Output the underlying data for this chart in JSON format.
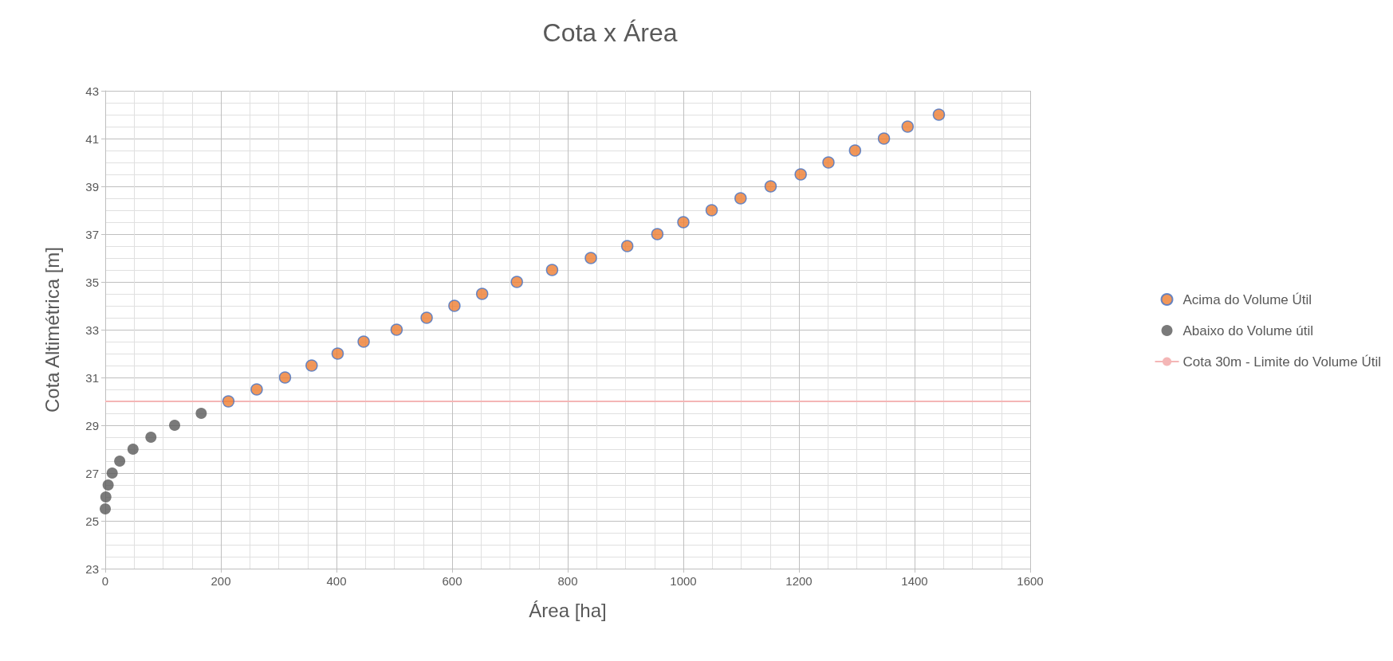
{
  "chart_data": {
    "type": "scatter",
    "title": "Cota x Área",
    "xlabel": "Área [ha]",
    "ylabel": "Cota Altimétrica [m]",
    "series": [
      {
        "name": "Acima do Volume Útil",
        "color": "#ed7d31",
        "x": [
          213,
          262,
          311,
          357,
          402,
          447,
          504,
          556,
          604,
          652,
          712,
          773,
          840,
          903,
          955,
          1000,
          1049,
          1099,
          1151,
          1203,
          1251,
          1297,
          1347,
          1388,
          1442
        ],
        "values": [
          30,
          30.5,
          31,
          31.5,
          32,
          32.5,
          33,
          33.5,
          34,
          34.5,
          35,
          35.5,
          36,
          36.5,
          37,
          37.5,
          38,
          38.5,
          39,
          39.5,
          40,
          40.5,
          41,
          41.5,
          42
        ]
      },
      {
        "name": "Abaixo do Volume útil",
        "color": "#595959",
        "x": [
          0,
          1,
          5,
          12,
          25,
          48,
          79,
          120,
          166
        ],
        "values": [
          25.5,
          26,
          26.5,
          27,
          27.5,
          28,
          28.5,
          29,
          29.5
        ]
      }
    ],
    "ref_lines": [
      {
        "axis": "y",
        "value": 30,
        "label": "Cota 30m - Limite do Volume Útil",
        "color": "#f4b6b6"
      }
    ],
    "xlim": [
      0,
      1600
    ],
    "xticks": [
      0,
      200,
      400,
      600,
      800,
      1000,
      1200,
      1400,
      1600
    ],
    "ylim": [
      23,
      43
    ],
    "yticks": [
      23,
      25,
      27,
      29,
      31,
      33,
      35,
      37,
      39,
      41,
      43
    ],
    "grid": true,
    "legend": "right",
    "marker": "circle"
  }
}
